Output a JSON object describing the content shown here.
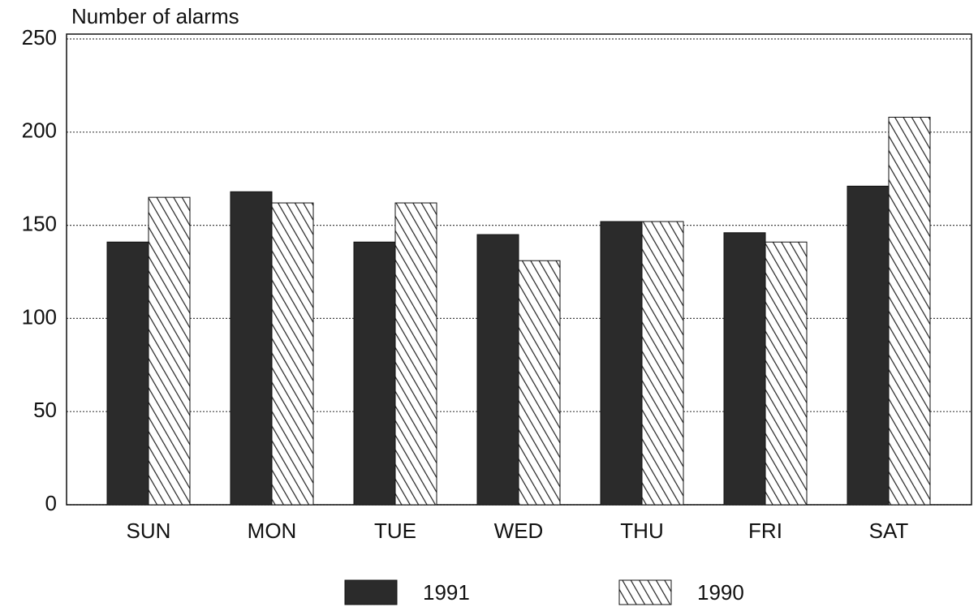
{
  "chart_data": {
    "type": "bar",
    "y_label": "Number of alarms",
    "categories": [
      "SUN",
      "MON",
      "TUE",
      "WED",
      "THU",
      "FRI",
      "SAT"
    ],
    "series": [
      {
        "name": "1991",
        "color": "#2b2b2b",
        "fill_style": "solid",
        "values": [
          141,
          168,
          141,
          145,
          152,
          146,
          171
        ]
      },
      {
        "name": "1990",
        "color": "#222222",
        "fill_style": "hatch",
        "values": [
          165,
          162,
          162,
          131,
          152,
          141,
          208
        ]
      }
    ],
    "ylim": [
      0,
      250
    ],
    "yticks": [
      0,
      50,
      100,
      150,
      200,
      250
    ],
    "grid": true,
    "legend": "bottom"
  }
}
